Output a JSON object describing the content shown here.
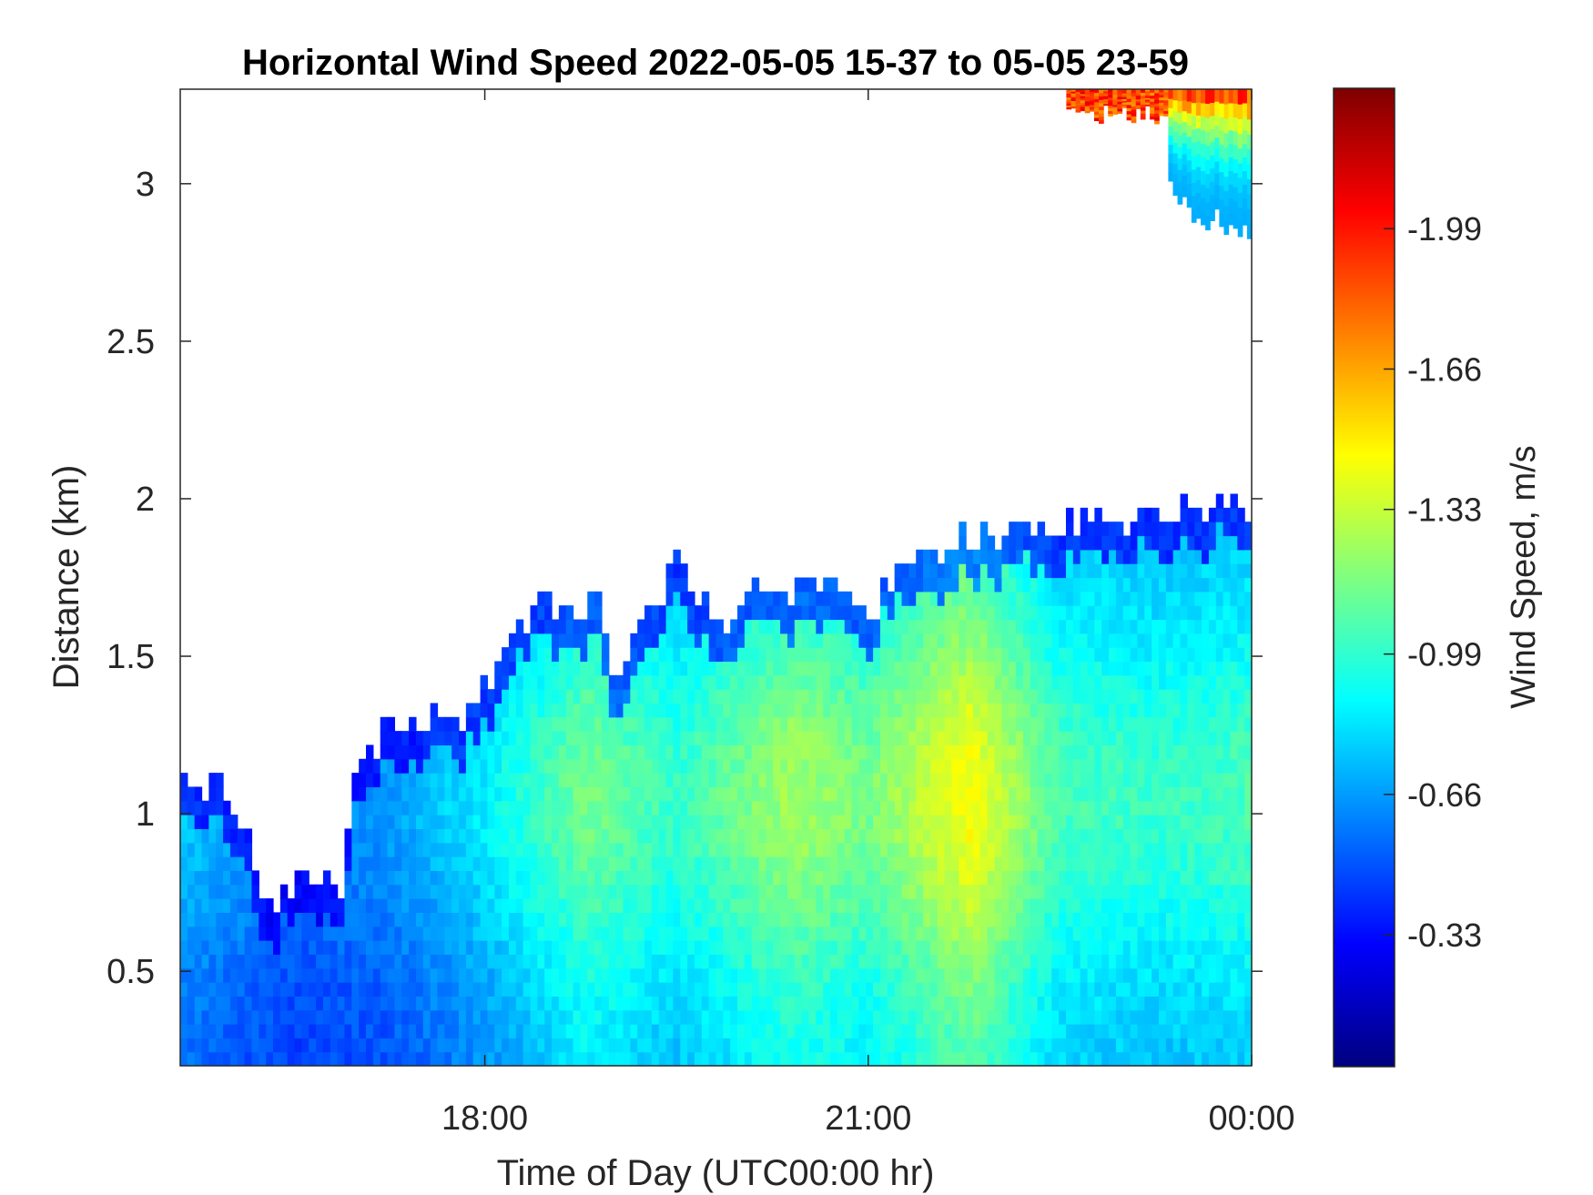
{
  "chart_data": {
    "type": "heatmap",
    "title": "Horizontal Wind Speed 2022-05-05 15-37 to 05-05 23-59",
    "xlabel": "Time of Day (UTC00:00 hr)",
    "ylabel": "Distance (km)",
    "xlim": [
      15.617,
      24.0
    ],
    "ylim": [
      0.2,
      3.3
    ],
    "x_ticks": [
      {
        "value": 18,
        "label": "18:00"
      },
      {
        "value": 21,
        "label": "21:00"
      },
      {
        "value": 24,
        "label": "00:00"
      }
    ],
    "y_ticks": [
      {
        "value": 0.5,
        "label": "0.5"
      },
      {
        "value": 1.0,
        "label": "1"
      },
      {
        "value": 1.5,
        "label": "1.5"
      },
      {
        "value": 2.0,
        "label": "2"
      },
      {
        "value": 2.5,
        "label": "2.5"
      },
      {
        "value": 3.0,
        "label": "3"
      }
    ],
    "colorbar": {
      "label": "Wind Speed, m/s",
      "colormap": "jet",
      "range": [
        -0.02,
        -2.32
      ],
      "ticks": [
        {
          "value": -0.33,
          "label": "-0.33"
        },
        {
          "value": -0.66,
          "label": "-0.66"
        },
        {
          "value": -0.99,
          "label": "-0.99"
        },
        {
          "value": -1.33,
          "label": "-1.33"
        },
        {
          "value": -1.66,
          "label": "-1.66"
        },
        {
          "value": -1.99,
          "label": "-1.99"
        }
      ]
    },
    "data_top_km_by_time": {
      "time_hr": [
        15.62,
        15.9,
        16.15,
        16.3,
        16.6,
        16.9,
        16.95,
        17.2,
        17.5,
        17.8,
        18.0,
        18.2,
        18.4,
        18.7,
        18.9,
        19.05,
        19.2,
        19.5,
        19.8,
        20.2,
        20.6,
        21.0,
        21.3,
        21.6,
        22.0,
        22.4,
        22.8,
        23.2,
        23.6,
        24.0
      ],
      "top_km": [
        1.08,
        1.08,
        0.95,
        0.7,
        0.8,
        0.75,
        1.15,
        1.25,
        1.3,
        1.3,
        1.4,
        1.55,
        1.65,
        1.63,
        1.65,
        1.4,
        1.6,
        1.8,
        1.62,
        1.7,
        1.7,
        1.65,
        1.8,
        1.85,
        1.88,
        1.9,
        1.95,
        1.93,
        1.97,
        2.0
      ]
    },
    "speed_pattern": [
      {
        "time_hr": 15.7,
        "speed_ms": -0.75
      },
      {
        "time_hr": 16.5,
        "speed_ms": -0.6
      },
      {
        "time_hr": 17.2,
        "speed_ms": -0.65
      },
      {
        "time_hr": 18.0,
        "speed_ms": -0.85
      },
      {
        "time_hr": 18.8,
        "speed_ms": -1.15
      },
      {
        "time_hr": 19.5,
        "speed_ms": -1.0
      },
      {
        "time_hr": 20.4,
        "speed_ms": -1.25
      },
      {
        "time_hr": 21.0,
        "speed_ms": -1.15
      },
      {
        "time_hr": 21.8,
        "speed_ms": -1.45
      },
      {
        "time_hr": 22.5,
        "speed_ms": -1.05
      },
      {
        "time_hr": 23.3,
        "speed_ms": -1.0
      },
      {
        "time_hr": 24.0,
        "speed_ms": -1.05
      }
    ],
    "upper_layer": {
      "time_range_hr": [
        22.55,
        24.0
      ],
      "km_range": [
        2.8,
        3.3
      ],
      "max_speed_ms": -2.1
    },
    "grid": false
  }
}
